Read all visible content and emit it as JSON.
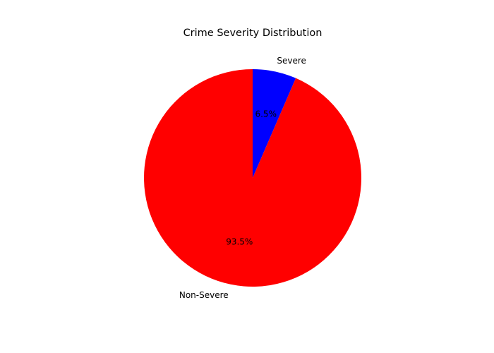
{
  "chart_data": {
    "type": "pie",
    "title": "Crime Severity Distribution",
    "start_angle_deg": 90,
    "direction": "clockwise",
    "slices": [
      {
        "label": "Severe",
        "value": 6.5,
        "pct_label": "6.5%",
        "color": "#0000ff"
      },
      {
        "label": "Non-Severe",
        "value": 93.5,
        "pct_label": "93.5%",
        "color": "#ff0000"
      }
    ]
  }
}
